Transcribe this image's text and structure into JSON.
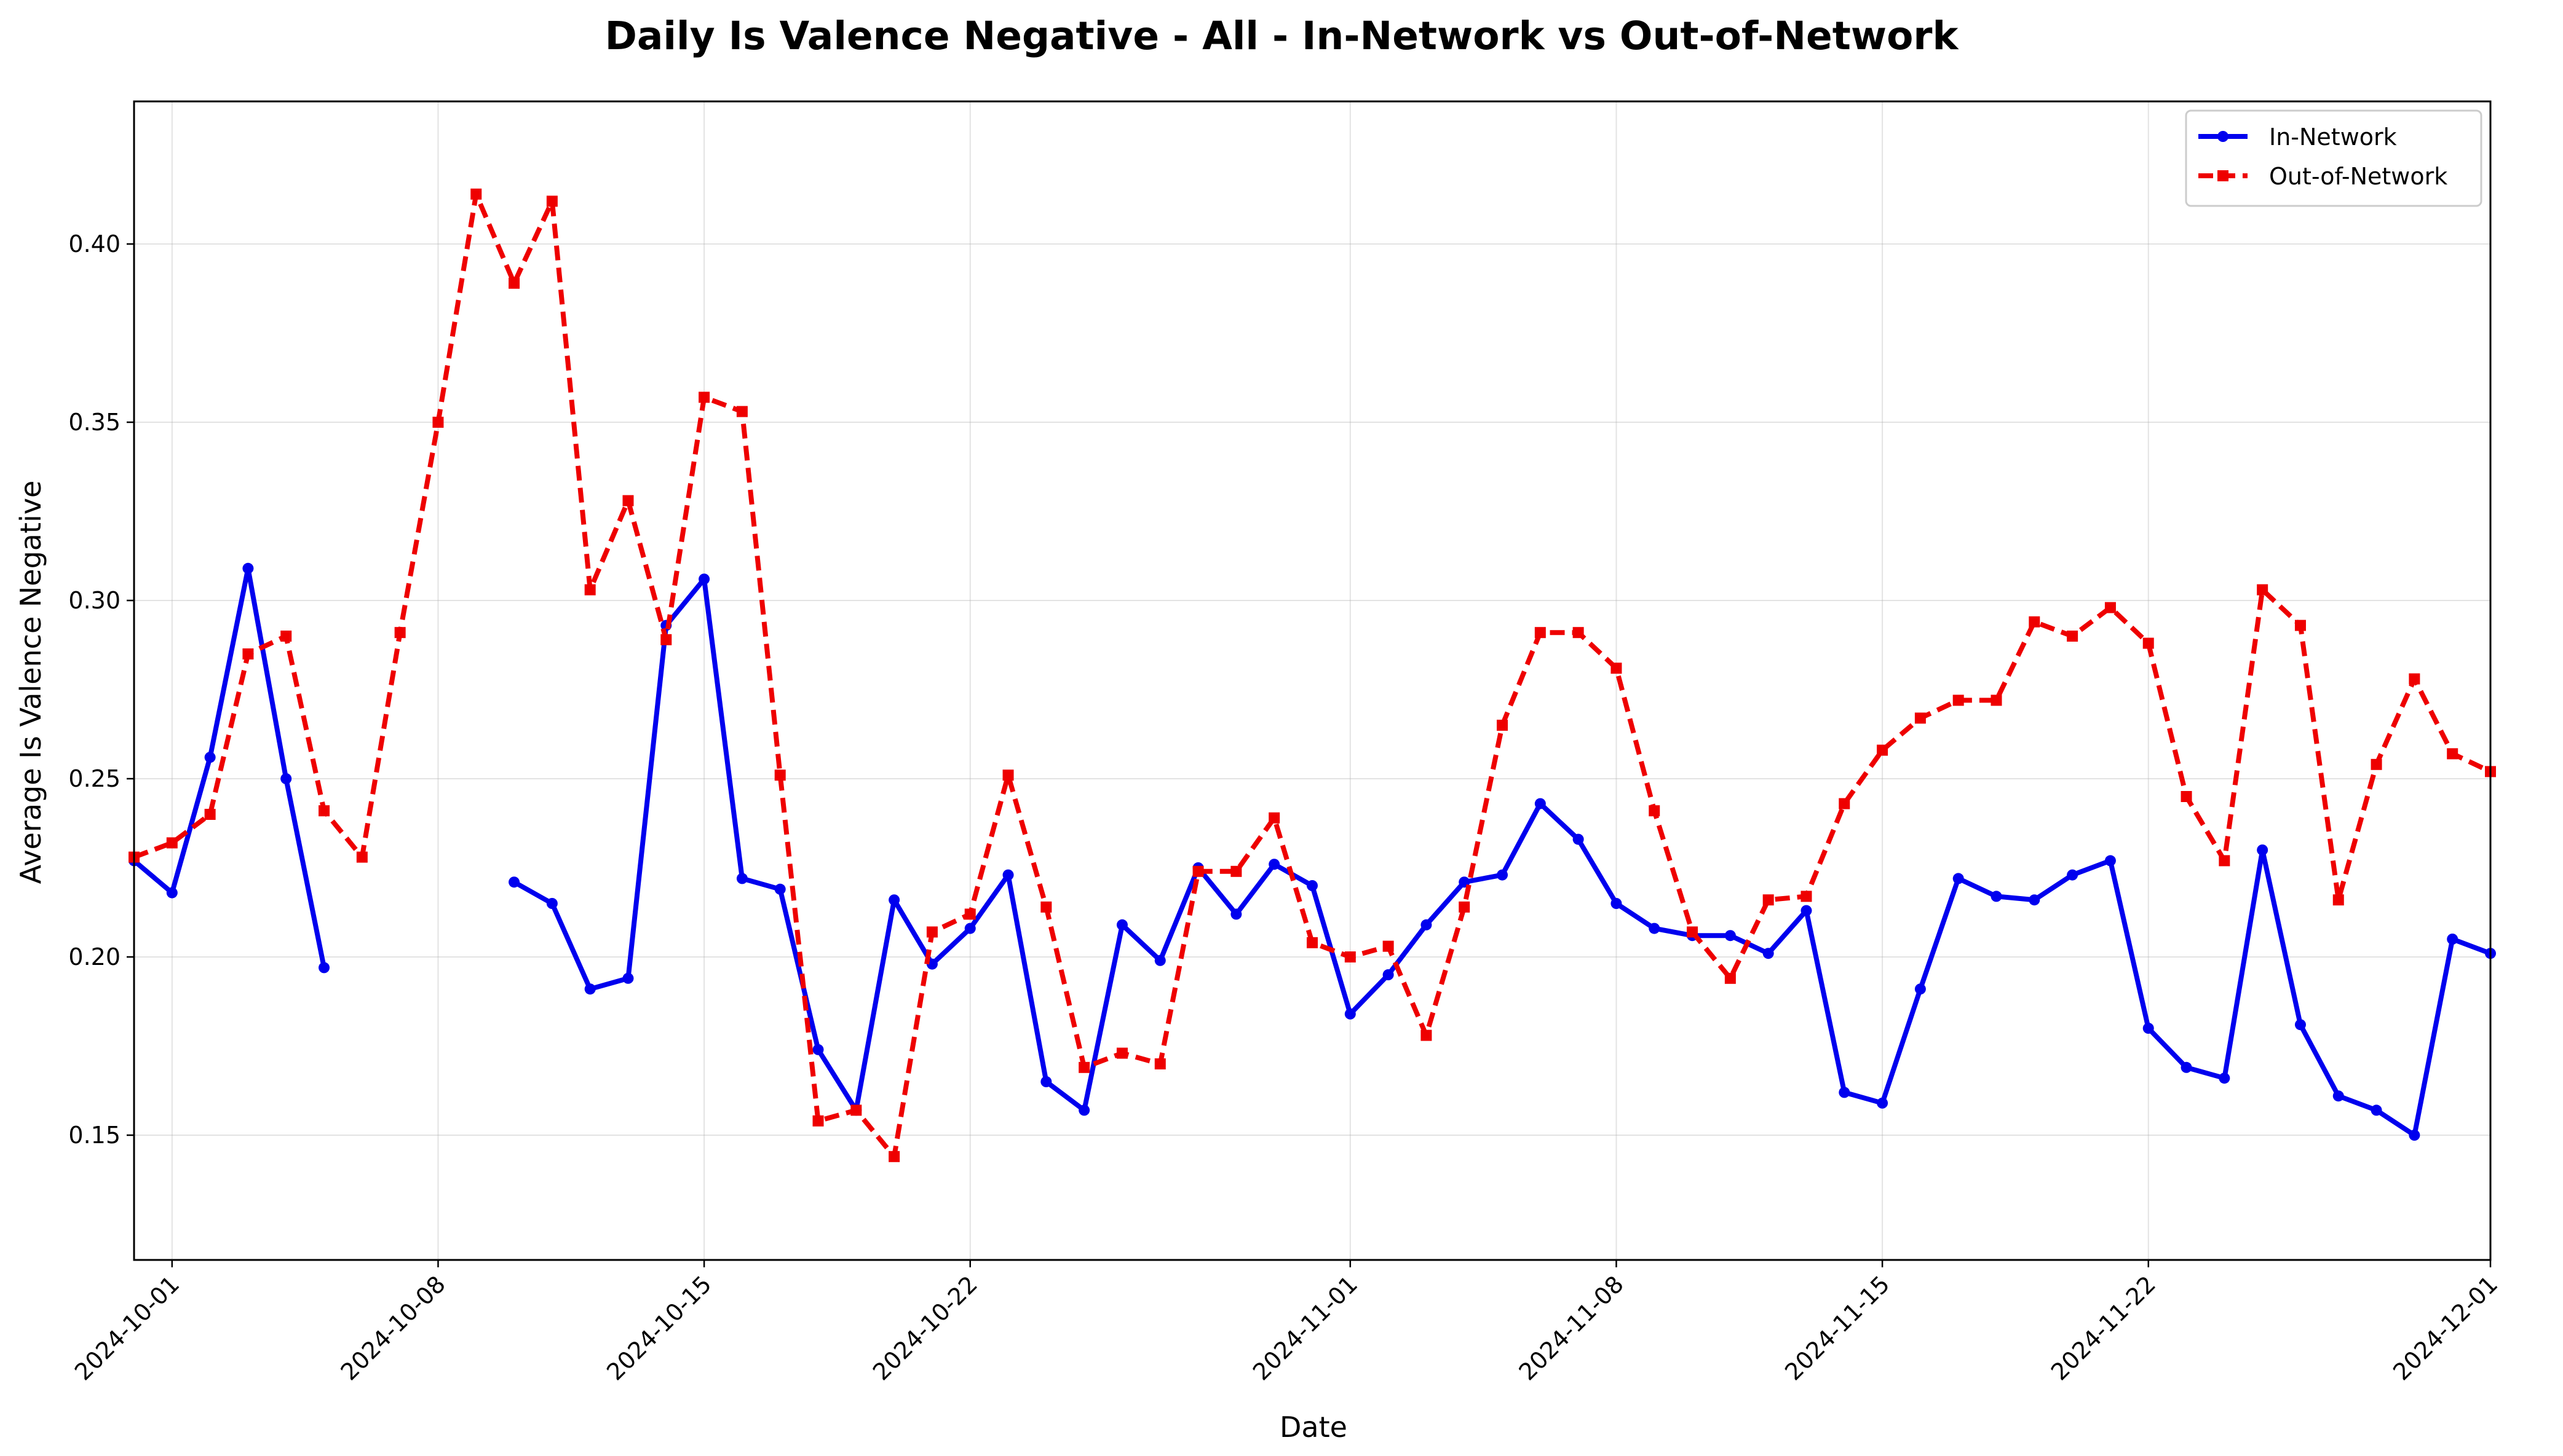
{
  "chart_data": {
    "type": "line",
    "title": "Daily Is Valence Negative - All - In-Network vs Out-of-Network",
    "xlabel": "Date",
    "ylabel": "Average Is Valence Negative",
    "xlim": [
      "2024-09-30",
      "2024-12-01"
    ],
    "ylim": [
      0.115,
      0.44
    ],
    "x_ticks": [
      "2024-10-01",
      "2024-10-08",
      "2024-10-15",
      "2024-10-22",
      "2024-11-01",
      "2024-11-08",
      "2024-11-15",
      "2024-11-22",
      "2024-12-01"
    ],
    "y_ticks": [
      "0.15",
      "0.20",
      "0.25",
      "0.30",
      "0.35",
      "0.40"
    ],
    "grid": true,
    "legend": "top-right",
    "series": [
      {
        "name": "In-Network",
        "color": "#0000ee",
        "line_style": "solid",
        "marker": "circle",
        "points": [
          [
            "2024-09-30",
            0.227
          ],
          [
            "2024-10-01",
            0.218
          ],
          [
            "2024-10-02",
            0.256
          ],
          [
            "2024-10-03",
            0.309
          ],
          [
            "2024-10-04",
            0.25
          ],
          [
            "2024-10-05",
            0.197
          ],
          [
            "2024-10-10",
            0.221
          ],
          [
            "2024-10-11",
            0.215
          ],
          [
            "2024-10-12",
            0.191
          ],
          [
            "2024-10-13",
            0.194
          ],
          [
            "2024-10-14",
            0.293
          ],
          [
            "2024-10-15",
            0.306
          ],
          [
            "2024-10-16",
            0.222
          ],
          [
            "2024-10-17",
            0.219
          ],
          [
            "2024-10-18",
            0.174
          ],
          [
            "2024-10-19",
            0.157
          ],
          [
            "2024-10-20",
            0.216
          ],
          [
            "2024-10-21",
            0.198
          ],
          [
            "2024-10-22",
            0.208
          ],
          [
            "2024-10-23",
            0.223
          ],
          [
            "2024-10-24",
            0.165
          ],
          [
            "2024-10-25",
            0.157
          ],
          [
            "2024-10-26",
            0.209
          ],
          [
            "2024-10-27",
            0.199
          ],
          [
            "2024-10-28",
            0.225
          ],
          [
            "2024-10-29",
            0.212
          ],
          [
            "2024-10-30",
            0.226
          ],
          [
            "2024-10-31",
            0.22
          ],
          [
            "2024-11-01",
            0.184
          ],
          [
            "2024-11-02",
            0.195
          ],
          [
            "2024-11-03",
            0.209
          ],
          [
            "2024-11-04",
            0.221
          ],
          [
            "2024-11-05",
            0.223
          ],
          [
            "2024-11-06",
            0.243
          ],
          [
            "2024-11-07",
            0.233
          ],
          [
            "2024-11-08",
            0.215
          ],
          [
            "2024-11-09",
            0.208
          ],
          [
            "2024-11-10",
            0.206
          ],
          [
            "2024-11-11",
            0.206
          ],
          [
            "2024-11-12",
            0.201
          ],
          [
            "2024-11-13",
            0.213
          ],
          [
            "2024-11-14",
            0.162
          ],
          [
            "2024-11-15",
            0.159
          ],
          [
            "2024-11-16",
            0.191
          ],
          [
            "2024-11-17",
            0.222
          ],
          [
            "2024-11-18",
            0.217
          ],
          [
            "2024-11-19",
            0.216
          ],
          [
            "2024-11-20",
            0.223
          ],
          [
            "2024-11-21",
            0.227
          ],
          [
            "2024-11-22",
            0.18
          ],
          [
            "2024-11-23",
            0.169
          ],
          [
            "2024-11-24",
            0.166
          ],
          [
            "2024-11-25",
            0.23
          ],
          [
            "2024-11-26",
            0.181
          ],
          [
            "2024-11-27",
            0.161
          ],
          [
            "2024-11-28",
            0.157
          ],
          [
            "2024-11-29",
            0.15
          ],
          [
            "2024-11-30",
            0.205
          ],
          [
            "2024-12-01",
            0.201
          ]
        ]
      },
      {
        "name": "Out-of-Network",
        "color": "#ee0000",
        "line_style": "dashed",
        "marker": "square",
        "points": [
          [
            "2024-09-30",
            0.228
          ],
          [
            "2024-10-01",
            0.232
          ],
          [
            "2024-10-02",
            0.24
          ],
          [
            "2024-10-03",
            0.285
          ],
          [
            "2024-10-04",
            0.29
          ],
          [
            "2024-10-05",
            0.241
          ],
          [
            "2024-10-06",
            0.228
          ],
          [
            "2024-10-07",
            0.291
          ],
          [
            "2024-10-08",
            0.35
          ],
          [
            "2024-10-09",
            0.414
          ],
          [
            "2024-10-10",
            0.389
          ],
          [
            "2024-10-11",
            0.412
          ],
          [
            "2024-10-12",
            0.303
          ],
          [
            "2024-10-13",
            0.328
          ],
          [
            "2024-10-14",
            0.289
          ],
          [
            "2024-10-15",
            0.357
          ],
          [
            "2024-10-16",
            0.353
          ],
          [
            "2024-10-17",
            0.251
          ],
          [
            "2024-10-18",
            0.154
          ],
          [
            "2024-10-19",
            0.157
          ],
          [
            "2024-10-20",
            0.144
          ],
          [
            "2024-10-21",
            0.207
          ],
          [
            "2024-10-22",
            0.212
          ],
          [
            "2024-10-23",
            0.251
          ],
          [
            "2024-10-24",
            0.214
          ],
          [
            "2024-10-25",
            0.169
          ],
          [
            "2024-10-26",
            0.173
          ],
          [
            "2024-10-27",
            0.17
          ],
          [
            "2024-10-28",
            0.224
          ],
          [
            "2024-10-29",
            0.224
          ],
          [
            "2024-10-30",
            0.239
          ],
          [
            "2024-10-31",
            0.204
          ],
          [
            "2024-11-01",
            0.2
          ],
          [
            "2024-11-02",
            0.203
          ],
          [
            "2024-11-03",
            0.178
          ],
          [
            "2024-11-04",
            0.214
          ],
          [
            "2024-11-05",
            0.265
          ],
          [
            "2024-11-06",
            0.291
          ],
          [
            "2024-11-07",
            0.291
          ],
          [
            "2024-11-08",
            0.281
          ],
          [
            "2024-11-09",
            0.241
          ],
          [
            "2024-11-10",
            0.207
          ],
          [
            "2024-11-11",
            0.194
          ],
          [
            "2024-11-12",
            0.216
          ],
          [
            "2024-11-13",
            0.217
          ],
          [
            "2024-11-14",
            0.243
          ],
          [
            "2024-11-15",
            0.258
          ],
          [
            "2024-11-16",
            0.267
          ],
          [
            "2024-11-17",
            0.272
          ],
          [
            "2024-11-18",
            0.272
          ],
          [
            "2024-11-19",
            0.294
          ],
          [
            "2024-11-20",
            0.29
          ],
          [
            "2024-11-21",
            0.298
          ],
          [
            "2024-11-22",
            0.288
          ],
          [
            "2024-11-23",
            0.245
          ],
          [
            "2024-11-24",
            0.227
          ],
          [
            "2024-11-25",
            0.303
          ],
          [
            "2024-11-26",
            0.293
          ],
          [
            "2024-11-27",
            0.216
          ],
          [
            "2024-11-28",
            0.254
          ],
          [
            "2024-11-29",
            0.278
          ],
          [
            "2024-11-30",
            0.257
          ],
          [
            "2024-12-01",
            0.252
          ]
        ]
      }
    ]
  }
}
